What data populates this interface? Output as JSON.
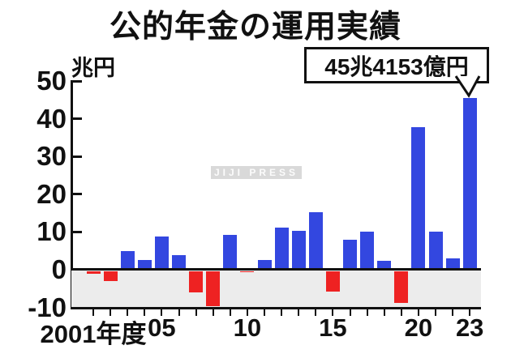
{
  "title": "公的年金の運用実績",
  "y_axis": {
    "unit": "兆円",
    "ticks": [
      50,
      40,
      30,
      20,
      10,
      0,
      -10
    ]
  },
  "x_axis": {
    "tick_labels": [
      {
        "year": 2001,
        "label": "2001年度"
      },
      {
        "year": 2005,
        "label": "05"
      },
      {
        "year": 2010,
        "label": "10"
      },
      {
        "year": 2015,
        "label": "15"
      },
      {
        "year": 2020,
        "label": "20"
      },
      {
        "year": 2023,
        "label": "23"
      }
    ]
  },
  "annotation": {
    "text": "45兆4153億円",
    "target_year": 2023
  },
  "watermark": "JIJI PRESS",
  "colors": {
    "positive": "#3347e0",
    "negative": "#ee2222",
    "negative_region": "#ececec",
    "axis": "#111111"
  },
  "chart_data": {
    "type": "bar",
    "title": "公的年金の運用実績",
    "ylabel": "兆円",
    "ylim": [
      -10,
      50
    ],
    "grid": false,
    "legend": false,
    "categories": [
      2001,
      2002,
      2003,
      2004,
      2005,
      2006,
      2007,
      2008,
      2009,
      2010,
      2011,
      2012,
      2013,
      2014,
      2015,
      2016,
      2017,
      2018,
      2019,
      2020,
      2021,
      2022,
      2023
    ],
    "values": [
      -0.6,
      -2.5,
      4.9,
      2.6,
      8.9,
      3.9,
      -5.6,
      -9.3,
      9.2,
      -0.3,
      2.6,
      11.2,
      10.2,
      15.3,
      -5.3,
      7.9,
      10.1,
      2.4,
      -8.3,
      37.8,
      10.1,
      3.0,
      45.4
    ],
    "annotations": [
      {
        "text": "45兆4153億円",
        "year": 2023,
        "value": 45.4153
      }
    ],
    "xticklabels": [
      "2001年度",
      "05",
      "10",
      "15",
      "20",
      "23"
    ]
  }
}
